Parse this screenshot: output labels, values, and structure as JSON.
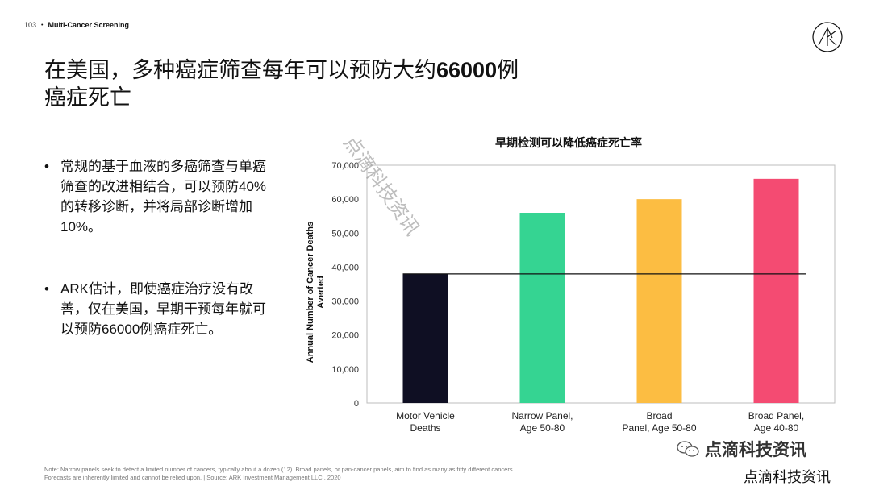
{
  "header": {
    "page_number": "103",
    "bullet": "•",
    "section": "Multi-Cancer Screening"
  },
  "title": {
    "before": "在美国，多种癌症筛查每年可以预防大约",
    "bold": "66000",
    "after": "例\n癌症死亡"
  },
  "bullets": [
    "常规的基于血液的多癌筛查与单癌筛查的改进相结合，可以预防40%的转移诊断，并将局部诊断增加10%。",
    "ARK估计，即使癌症治疗没有改善，仅在美国，早期干预每年就可以预防66000例癌症死亡。"
  ],
  "chart_data": {
    "type": "bar",
    "title": "早期检测可以降低癌症死亡率",
    "ylabel": "Annual Number of Cancer Deaths Averted",
    "xlabel": "",
    "ylim": [
      0,
      70000
    ],
    "yticks": [
      0,
      10000,
      20000,
      30000,
      40000,
      50000,
      60000,
      70000
    ],
    "ytick_labels": [
      "0",
      "10,000",
      "20,000",
      "30,000",
      "40,000",
      "50,000",
      "60,000",
      "70,000"
    ],
    "categories": [
      [
        "Motor Vehicle",
        "Deaths"
      ],
      [
        "Narrow Panel,",
        "Age 50-80"
      ],
      [
        "Broad",
        "Panel, Age 50-80"
      ],
      [
        "Broad Panel,",
        "Age 40-80"
      ]
    ],
    "values": [
      38000,
      56000,
      60000,
      66000
    ],
    "colors": [
      "#0f0f23",
      "#35d492",
      "#fcbd42",
      "#f44b72"
    ],
    "reference_line": 38000,
    "grid": false
  },
  "note": "Note: Narrow panels seek to detect a limited number of cancers, typically about a dozen (12). Broad panels, or pan-cancer panels, aim to find as many as fifty different cancers.\nForecasts are inherently limited and cannot be relied upon.  |   Source: ARK Investment Management LLC., 2020",
  "watermarks": {
    "diagonal": "点滴科技资讯",
    "wechat": "点滴科技资讯",
    "footer": "点滴科技资讯"
  }
}
